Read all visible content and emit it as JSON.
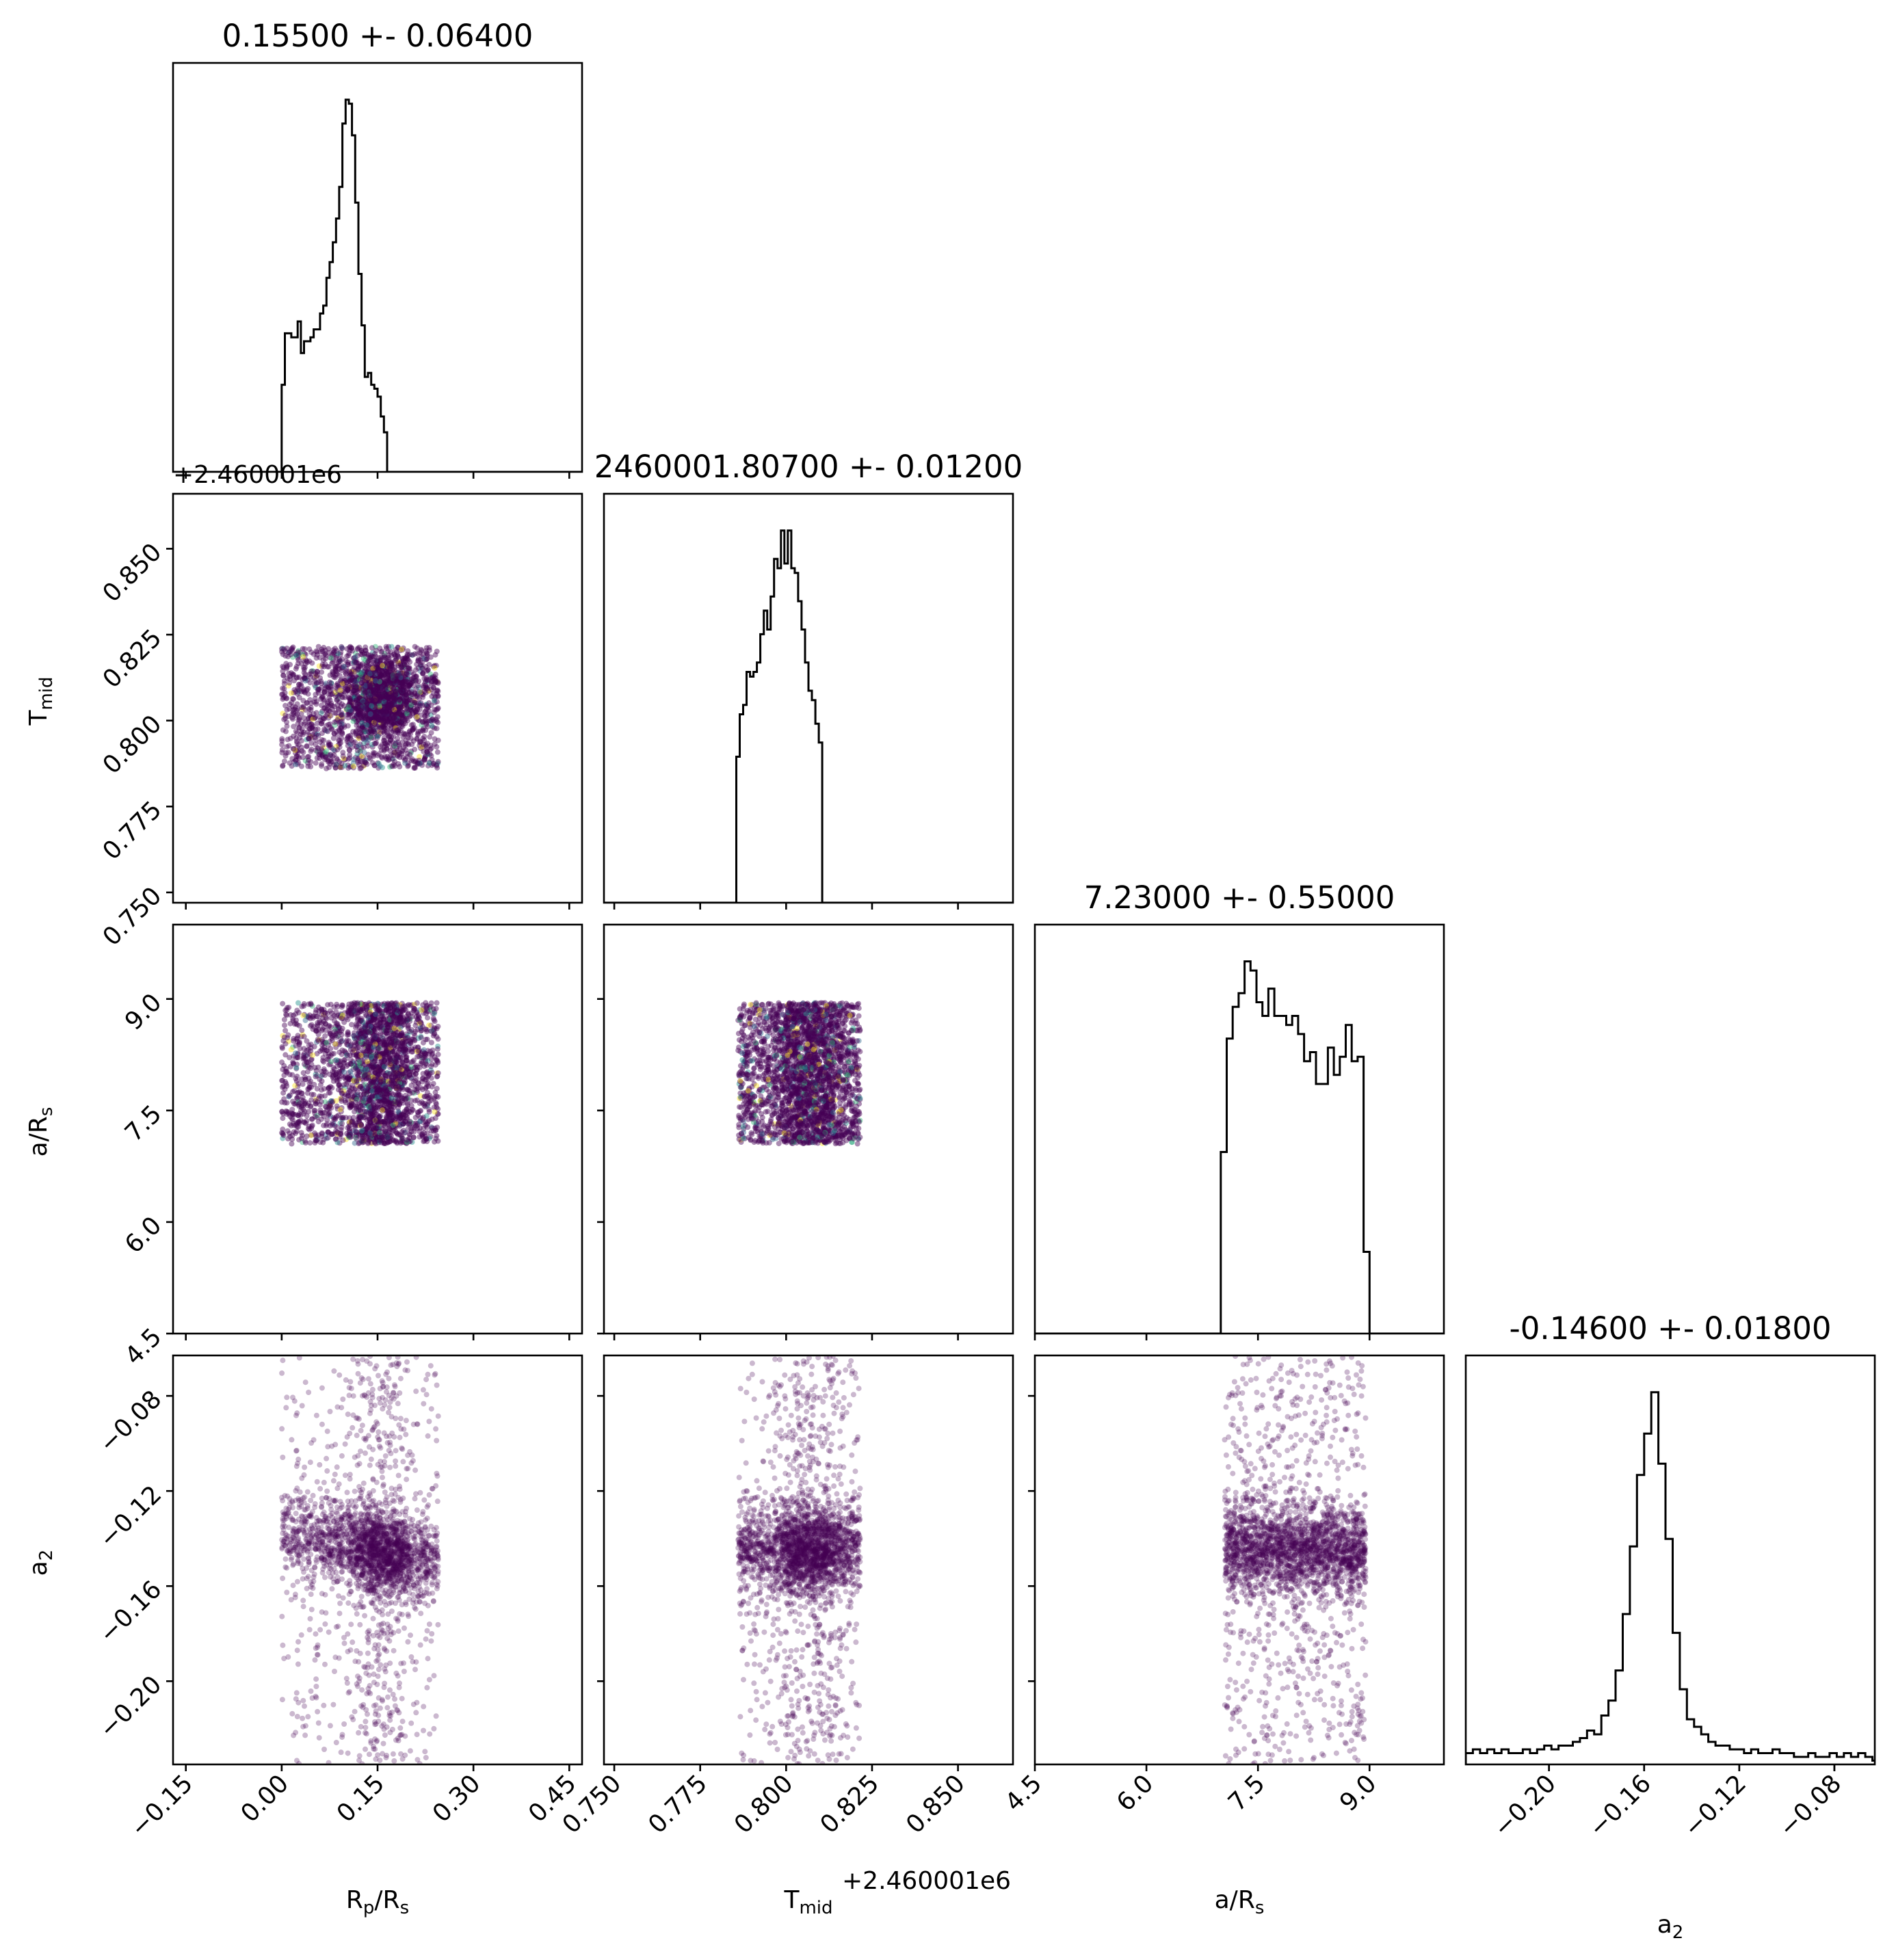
{
  "colors": {
    "points_main": "#440154",
    "points_accent": [
      "#31688e",
      "#35b779",
      "#fde725",
      "#21918c"
    ],
    "hist": "#000000",
    "axis": "#000000"
  },
  "chart_data": {
    "type": "corner",
    "parameters": [
      {
        "key": "rp",
        "label_main": "R",
        "label_sub": "p",
        "label_rest": "/R",
        "label_sub2": "s",
        "median": 0.155,
        "sigma": 0.064,
        "range": [
          -0.17,
          0.47
        ],
        "ticks": [
          "−0.15",
          "0.00",
          "0.15",
          "0.30",
          "0.45"
        ],
        "tick_values": [
          -0.15,
          0.0,
          0.15,
          0.3,
          0.45
        ],
        "title": "0.15500 +- 0.06400"
      },
      {
        "key": "tmid",
        "label_main": "T",
        "label_sub": "mid",
        "label_rest": "",
        "label_sub2": "",
        "median": 0.807,
        "sigma": 0.012,
        "range": [
          0.747,
          0.866
        ],
        "ticks": [
          "0.750",
          "0.775",
          "0.800",
          "0.825",
          "0.850"
        ],
        "tick_values": [
          0.75,
          0.775,
          0.8,
          0.825,
          0.85
        ],
        "title": "2460001.80700 +- 0.01200",
        "offset": "+2.460001e6"
      },
      {
        "key": "ars",
        "label_main": "a/R",
        "label_sub": "s",
        "label_rest": "",
        "label_sub2": "",
        "median": 7.23,
        "sigma": 0.55,
        "range": [
          4.5,
          10.0
        ],
        "ticks": [
          "4.5",
          "6.0",
          "7.5",
          "9.0"
        ],
        "tick_values": [
          4.5,
          6.0,
          7.5,
          9.0
        ],
        "title": "7.23000 +- 0.55000"
      },
      {
        "key": "a2",
        "label_main": "a",
        "label_sub": "2",
        "label_rest": "",
        "label_sub2": "",
        "median": -0.146,
        "sigma": 0.018,
        "range": [
          -0.235,
          -0.063
        ],
        "ticks": [
          "−0.20",
          "−0.16",
          "−0.12",
          "−0.08"
        ],
        "tick_values": [
          -0.2,
          -0.16,
          -0.12,
          -0.08
        ],
        "title": "-0.14600 +- 0.01800"
      }
    ],
    "histograms": {
      "rp": {
        "edges_start": -0.0,
        "bin_width": 0.005,
        "counts": [
          22,
          35,
          35,
          34,
          34,
          38,
          30,
          33,
          33,
          34,
          36,
          36,
          40,
          42,
          49,
          53,
          58,
          64,
          72,
          88,
          94,
          93,
          85,
          68,
          50,
          37,
          24,
          25,
          22,
          21,
          19,
          14,
          10,
          0
        ]
      },
      "tmid": {
        "edges_start": 0.7855,
        "bin_width": 0.001,
        "counts": [
          31,
          40,
          42,
          49,
          48,
          49,
          51,
          57,
          62,
          58,
          65,
          73,
          71,
          79,
          72,
          79,
          71,
          70,
          64,
          58,
          51,
          45,
          43,
          38,
          34,
          0
        ]
      },
      "ars": {
        "edges_start": 7.0,
        "bin_width": 0.08,
        "counts": [
          40,
          65,
          72,
          75,
          82,
          80,
          73,
          70,
          76,
          70,
          70,
          68,
          70,
          66,
          60,
          62,
          55,
          55,
          63,
          57,
          61,
          68,
          60,
          61,
          18,
          0
        ]
      },
      "a2": {
        "edges_start": -0.235,
        "bin_width": 0.003,
        "counts": [
          3,
          4,
          3,
          4,
          3,
          4,
          3,
          3,
          4,
          3,
          4,
          5,
          4,
          5,
          5,
          6,
          7,
          9,
          8,
          13,
          17,
          25,
          40,
          58,
          77,
          88,
          99,
          80,
          60,
          35,
          20,
          12,
          10,
          8,
          6,
          5,
          5,
          4,
          4,
          3,
          4,
          3,
          3,
          4,
          3,
          3,
          2,
          2,
          3,
          2,
          2,
          3,
          2,
          3,
          2,
          3,
          2,
          1
        ]
      }
    },
    "scatter_samples": 2600
  }
}
